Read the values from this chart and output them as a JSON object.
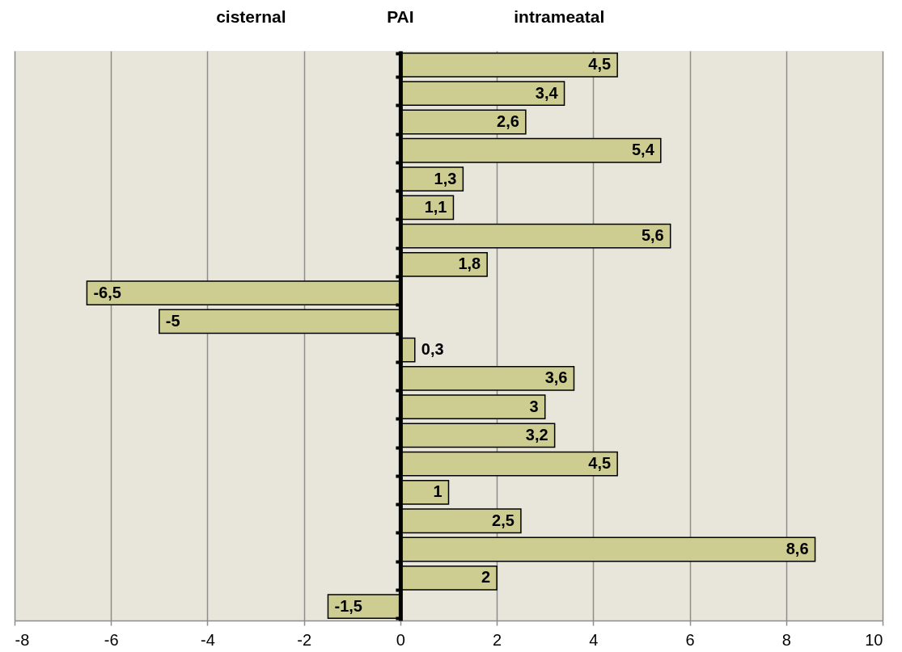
{
  "chart_data": {
    "type": "bar",
    "orientation": "horizontal",
    "title": "PAI",
    "annotations": [
      "cisternal",
      "intrameatal"
    ],
    "categories": [
      null,
      null,
      null,
      null,
      null,
      null,
      null,
      null,
      null,
      null,
      null,
      null,
      null,
      null,
      null,
      null,
      null,
      null,
      null,
      null
    ],
    "values": [
      4.5,
      3.4,
      2.6,
      5.4,
      1.3,
      1.1,
      5.6,
      1.8,
      -6.5,
      -5,
      0.3,
      3.6,
      3,
      3.2,
      4.5,
      1,
      2.5,
      8.6,
      2,
      -1.5
    ],
    "value_labels": [
      "4,5",
      "3,4",
      "2,6",
      "5,4",
      "1,3",
      "1,1",
      "5,6",
      "1,8",
      "-6,5",
      "-5",
      "0,3",
      "3,6",
      "3",
      "3,2",
      "4,5",
      "1",
      "2,5",
      "8,6",
      "2",
      "-1,5"
    ],
    "color": "#cdcd92",
    "xlim": [
      -8,
      10
    ],
    "xticks": [
      -8,
      -6,
      -4,
      -2,
      0,
      2,
      4,
      6,
      8,
      10
    ],
    "grid": "x",
    "tick_labels": "x"
  }
}
